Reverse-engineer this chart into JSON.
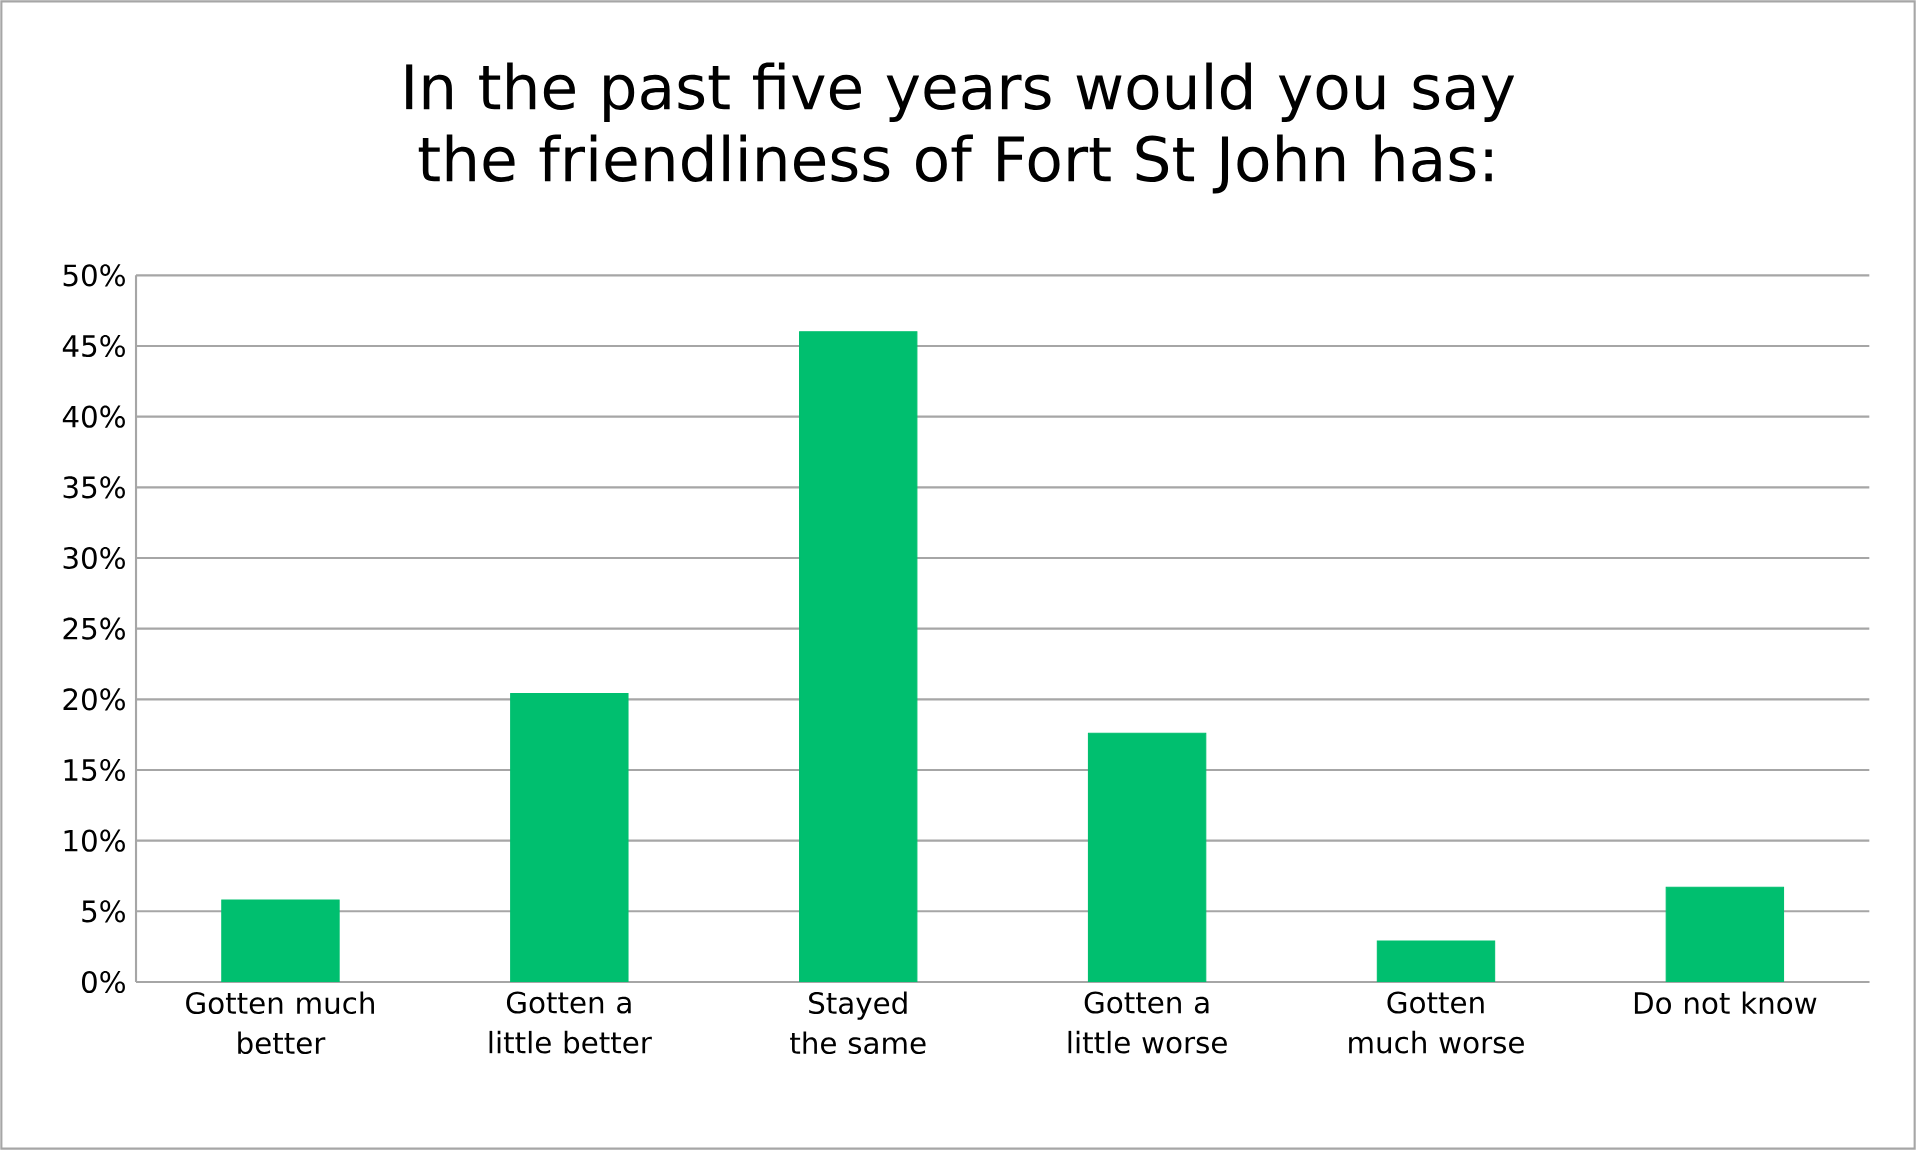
{
  "chart_data": {
    "type": "bar",
    "title": "In the past five years would you say the friendliness of Fort St John has:",
    "categories": [
      "Gotten much better",
      "Gotten a little better",
      "Stayed the same",
      "Gotten a little worse",
      "Gotten much worse",
      "Do not know"
    ],
    "values": [
      5.8,
      20.4,
      46.0,
      17.6,
      2.9,
      6.7
    ],
    "color": "#00bf6f",
    "ylim": [
      0,
      50
    ],
    "yticks": [
      {
        "value": 0,
        "label": "0%"
      },
      {
        "value": 5,
        "label": "5%"
      },
      {
        "value": 10,
        "label": "10%"
      },
      {
        "value": 15,
        "label": "15%"
      },
      {
        "value": 20,
        "label": "20%"
      },
      {
        "value": 25,
        "label": "25%"
      },
      {
        "value": 30,
        "label": "30%"
      },
      {
        "value": 35,
        "label": "35%"
      },
      {
        "value": 40,
        "label": "40%"
      },
      {
        "value": 45,
        "label": "45%"
      },
      {
        "value": 50,
        "label": "50%"
      }
    ],
    "grid": "y"
  }
}
